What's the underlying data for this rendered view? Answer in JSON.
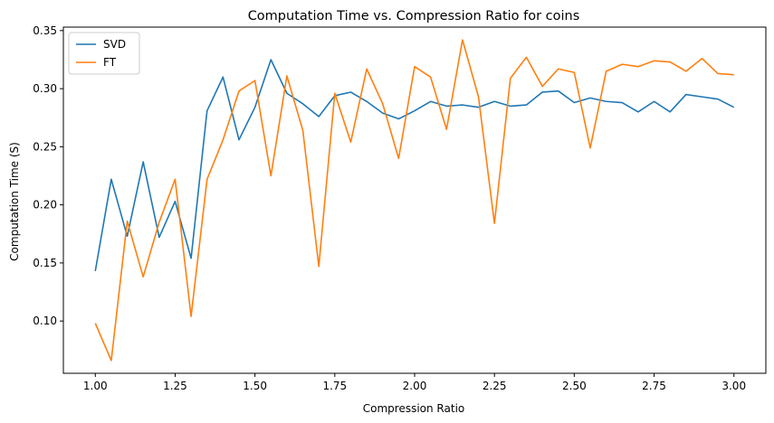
{
  "chart_data": {
    "type": "line",
    "title": "Computation Time vs. Compression Ratio for coins",
    "xlabel": "Compression Ratio",
    "ylabel": "Computation Time (S)",
    "xlim": [
      0.9,
      3.1
    ],
    "ylim": [
      0.055,
      0.353
    ],
    "xticks": [
      "1.00",
      "1.25",
      "1.50",
      "1.75",
      "2.00",
      "2.25",
      "2.50",
      "2.75",
      "3.00"
    ],
    "yticks": [
      "0.10",
      "0.15",
      "0.20",
      "0.25",
      "0.30",
      "0.35"
    ],
    "grid": false,
    "legend_position": "top-left",
    "x": [
      1.0,
      1.05,
      1.1,
      1.15,
      1.2,
      1.25,
      1.3,
      1.35,
      1.4,
      1.45,
      1.5,
      1.55,
      1.6,
      1.65,
      1.7,
      1.75,
      1.8,
      1.85,
      1.9,
      1.95,
      2.0,
      2.05,
      2.1,
      2.15,
      2.2,
      2.25,
      2.3,
      2.35,
      2.4,
      2.45,
      2.5,
      2.55,
      2.6,
      2.65,
      2.7,
      2.75,
      2.8,
      2.85,
      2.9,
      2.95,
      3.0
    ],
    "series": [
      {
        "name": "SVD",
        "color": "#1f77b4",
        "values": [
          0.143,
          0.222,
          0.173,
          0.237,
          0.172,
          0.203,
          0.154,
          0.281,
          0.31,
          0.256,
          0.284,
          0.325,
          0.296,
          0.287,
          0.276,
          0.294,
          0.297,
          0.289,
          0.279,
          0.274,
          0.281,
          0.289,
          0.285,
          0.286,
          0.284,
          0.289,
          0.285,
          0.286,
          0.297,
          0.298,
          0.288,
          0.292,
          0.289,
          0.288,
          0.28,
          0.289,
          0.28,
          0.295,
          0.293,
          0.291,
          0.284
        ]
      },
      {
        "name": "FT",
        "color": "#ff7f0e",
        "values": [
          0.098,
          0.066,
          0.186,
          0.138,
          0.185,
          0.222,
          0.104,
          0.222,
          0.256,
          0.298,
          0.307,
          0.225,
          0.311,
          0.264,
          0.147,
          0.296,
          0.254,
          0.317,
          0.287,
          0.24,
          0.319,
          0.31,
          0.265,
          0.342,
          0.293,
          0.184,
          0.309,
          0.327,
          0.302,
          0.317,
          0.314,
          0.249,
          0.315,
          0.321,
          0.319,
          0.324,
          0.323,
          0.315,
          0.326,
          0.313,
          0.312
        ]
      }
    ]
  }
}
